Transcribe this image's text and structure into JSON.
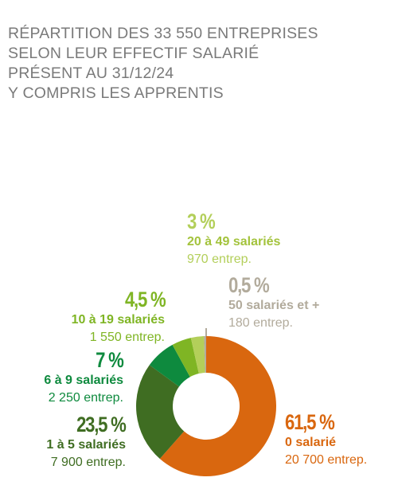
{
  "title_lines": [
    "RÉPARTITION DES 33 550 ENTREPRISES",
    "SELON LEUR EFFECTIF SALARIÉ",
    "PRÉSENT AU 31/12/24",
    "Y COMPRIS LES APPRENTIS"
  ],
  "chart_data": {
    "type": "pie",
    "title": "RÉPARTITION DES 33 550 ENTREPRISES SELON LEUR EFFECTIF SALARIÉ PRÉSENT AU 31/12/24 Y COMPRIS LES APPRENTIS",
    "slices": [
      {
        "label": "0 salarié",
        "percent": 61.5,
        "percent_text": "61,5 %",
        "count_text": "20 700 entrep.",
        "color": "#d9670f"
      },
      {
        "label": "1 à 5 salariés",
        "percent": 23.5,
        "percent_text": "23,5 %",
        "count_text": "7 900 entrep.",
        "color": "#3f6d22"
      },
      {
        "label": "6 à 9 salariés",
        "percent": 7,
        "percent_text": "7 %",
        "count_text": "2 250 entrep.",
        "color": "#0e8a3e"
      },
      {
        "label": "10 à 19 salariés",
        "percent": 4.5,
        "percent_text": "4,5 %",
        "count_text": "1 550 entrep.",
        "color": "#7fb524"
      },
      {
        "label": "20 à 49 salariés",
        "percent": 3,
        "percent_text": "3 %",
        "count_text": "970 entrep.",
        "color": "#b3cf5a"
      },
      {
        "label": "50 salariés et +",
        "percent": 0.5,
        "percent_text": "0,5 %",
        "count_text": "180 entrep.",
        "color": "#b2ab9c"
      }
    ]
  }
}
